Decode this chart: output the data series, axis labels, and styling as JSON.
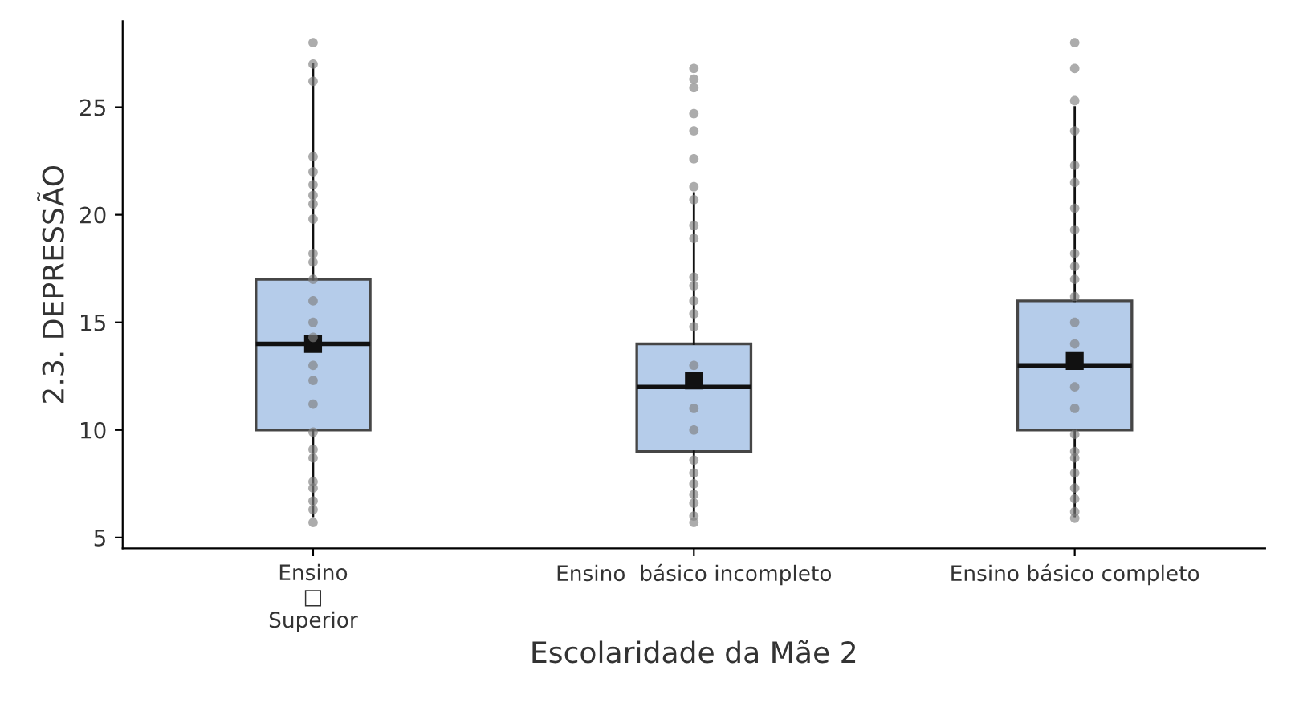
{
  "chart_data": {
    "type": "box",
    "xlabel": "Escolaridade da Mãe 2",
    "ylabel": "2.3. DEPRESSÃO",
    "categories": [
      "Ensino\n□\nSuperior",
      "Ensino  básico incompleto",
      "Ensino básico completo"
    ],
    "ylim": [
      4.5,
      29
    ],
    "yticks": [
      5,
      10,
      15,
      20,
      25
    ],
    "grid": false,
    "legend": false,
    "series": [
      {
        "color": "#aec7e8",
        "boxes": [
          {
            "low": 6,
            "q1": 10,
            "median": 14,
            "q3": 17,
            "high": 27,
            "mean": 14
          },
          {
            "low": 6,
            "q1": 9,
            "median": 12,
            "q3": 14,
            "high": 21,
            "mean": 12.3
          },
          {
            "low": 6,
            "q1": 10,
            "median": 13,
            "q3": 16,
            "high": 25,
            "mean": 13.2
          }
        ]
      },
      {
        "type": "scatter",
        "color": "#808080",
        "marker": "circle",
        "x": [
          "Ensino\n□\nSuperior",
          "Ensino\n□\nSuperior",
          "Ensino\n□\nSuperior",
          "Ensino\n□\nSuperior",
          "Ensino\n□\nSuperior",
          "Ensino\n□\nSuperior",
          "Ensino\n□\nSuperior",
          "Ensino\n□\nSuperior",
          "Ensino\n□\nSuperior",
          "Ensino\n□\nSuperior",
          "Ensino\n□\nSuperior",
          "Ensino\n□\nSuperior",
          "Ensino\n□\nSuperior",
          "Ensino\n□\nSuperior",
          "Ensino\n□\nSuperior",
          "Ensino\n□\nSuperior",
          "Ensino\n□\nSuperior",
          "Ensino\n□\nSuperior",
          "Ensino\n□\nSuperior",
          "Ensino\n□\nSuperior",
          "Ensino\n□\nSuperior",
          "Ensino\n□\nSuperior",
          "Ensino\n□\nSuperior",
          "Ensino\n□\nSuperior",
          "Ensino\n□\nSuperior",
          "Ensino\n□\nSuperior"
        ],
        "values": [
          28,
          27,
          26.2,
          22.7,
          22,
          21.4,
          20.9,
          20.5,
          19.8,
          18.2,
          17.8,
          17,
          16,
          15,
          14.3,
          13,
          12.3,
          11.2,
          9.9,
          9.1,
          8.7,
          7.6,
          7.3,
          6.7,
          6.3,
          5.7
        ]
      },
      {
        "type": "scatter",
        "color": "#808080",
        "marker": "circle",
        "x": [
          "Ensino  básico incompleto",
          "Ensino  básico incompleto",
          "Ensino  básico incompleto",
          "Ensino  básico incompleto",
          "Ensino  básico incompleto",
          "Ensino  básico incompleto",
          "Ensino  básico incompleto",
          "Ensino  básico incompleto",
          "Ensino  básico incompleto",
          "Ensino  básico incompleto",
          "Ensino  básico incompleto",
          "Ensino  básico incompleto",
          "Ensino  básico incompleto",
          "Ensino  básico incompleto",
          "Ensino  básico incompleto",
          "Ensino  básico incompleto",
          "Ensino  básico incompleto",
          "Ensino  básico incompleto",
          "Ensino  básico incompleto",
          "Ensino  básico incompleto",
          "Ensino  básico incompleto",
          "Ensino  básico incompleto",
          "Ensino  básico incompleto",
          "Ensino  básico incompleto",
          "Ensino  básico incompleto"
        ],
        "values": [
          26.8,
          26.3,
          25.9,
          24.7,
          23.9,
          22.6,
          21.3,
          20.7,
          19.5,
          18.9,
          17.1,
          16.7,
          16,
          15.4,
          14.8,
          13,
          11,
          10,
          8.6,
          8,
          7.5,
          7,
          6.6,
          6,
          5.7
        ]
      },
      {
        "type": "scatter",
        "color": "#808080",
        "marker": "circle",
        "x": [
          "Ensino básico completo",
          "Ensino básico completo",
          "Ensino básico completo",
          "Ensino básico completo",
          "Ensino básico completo",
          "Ensino básico completo",
          "Ensino básico completo",
          "Ensino básico completo",
          "Ensino básico completo",
          "Ensino básico completo",
          "Ensino básico completo",
          "Ensino básico completo",
          "Ensino básico completo",
          "Ensino básico completo",
          "Ensino básico completo",
          "Ensino básico completo",
          "Ensino básico completo",
          "Ensino básico completo",
          "Ensino básico completo",
          "Ensino básico completo",
          "Ensino básico completo",
          "Ensino básico completo",
          "Ensino básico completo",
          "Ensino básico completo"
        ],
        "values": [
          28,
          26.8,
          25.3,
          23.9,
          22.3,
          21.5,
          20.3,
          19.3,
          18.2,
          17.6,
          17,
          16.2,
          15,
          14,
          12,
          11,
          9.8,
          9,
          8.7,
          8,
          7.3,
          6.8,
          6.2,
          5.9
        ]
      }
    ]
  }
}
